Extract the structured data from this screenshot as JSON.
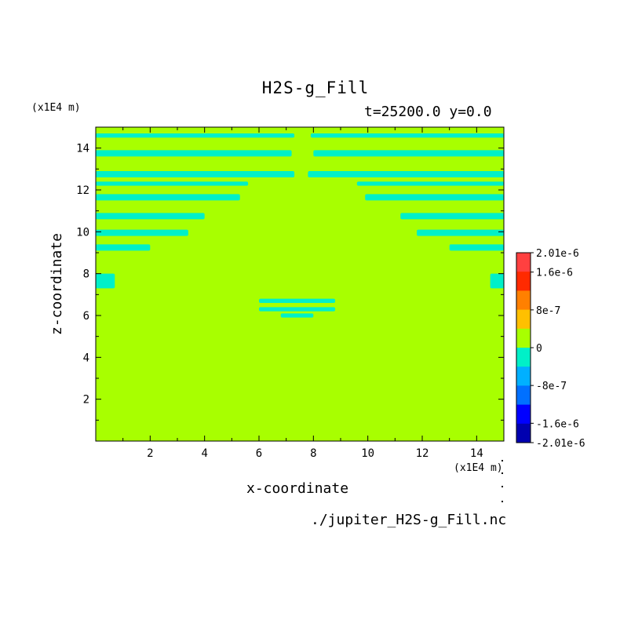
{
  "chart_data": {
    "type": "heatmap",
    "title": "H2S-g_Fill",
    "subtitle": "t=25200.0 y=0.0",
    "xlabel": "x-coordinate",
    "ylabel": "z-coordinate",
    "x_unit": "(x1E4 m)",
    "y_unit": "(x1E4 m)",
    "xlim": [
      0,
      15
    ],
    "ylim": [
      0,
      15
    ],
    "x_ticks": [
      2,
      4,
      6,
      8,
      10,
      12,
      14
    ],
    "y_ticks": [
      2,
      4,
      6,
      8,
      10,
      12,
      14
    ],
    "x_tick_labels": [
      "2",
      "4",
      "6",
      "8",
      "10",
      "12",
      "14"
    ],
    "y_tick_labels": [
      "2",
      "4",
      "6",
      "8",
      "10",
      "12",
      "14"
    ],
    "grid": false,
    "background_value": 0,
    "features": [
      {
        "kind": "cyan-band",
        "x": [
          0,
          7.3
        ],
        "z": [
          14.5,
          14.7
        ]
      },
      {
        "kind": "cyan-band",
        "x": [
          7.9,
          15
        ],
        "z": [
          14.5,
          14.7
        ]
      },
      {
        "kind": "cyan-band",
        "x": [
          0,
          7.2
        ],
        "z": [
          13.6,
          13.9
        ]
      },
      {
        "kind": "cyan-band",
        "x": [
          8,
          15
        ],
        "z": [
          13.6,
          13.9
        ]
      },
      {
        "kind": "cyan-band",
        "x": [
          0,
          7.3
        ],
        "z": [
          12.6,
          12.9
        ]
      },
      {
        "kind": "cyan-band",
        "x": [
          7.8,
          15
        ],
        "z": [
          12.6,
          12.9
        ]
      },
      {
        "kind": "cyan-band",
        "x": [
          0,
          5.6
        ],
        "z": [
          12.2,
          12.4
        ]
      },
      {
        "kind": "cyan-band",
        "x": [
          9.6,
          15
        ],
        "z": [
          12.2,
          12.4
        ]
      },
      {
        "kind": "cyan-band",
        "x": [
          0,
          5.3
        ],
        "z": [
          11.5,
          11.8
        ]
      },
      {
        "kind": "cyan-band",
        "x": [
          9.9,
          15
        ],
        "z": [
          11.5,
          11.8
        ]
      },
      {
        "kind": "cyan-band",
        "x": [
          0,
          4.0
        ],
        "z": [
          10.6,
          10.9
        ]
      },
      {
        "kind": "cyan-band",
        "x": [
          11.2,
          15
        ],
        "z": [
          10.6,
          10.9
        ]
      },
      {
        "kind": "cyan-band",
        "x": [
          0,
          3.4
        ],
        "z": [
          9.8,
          10.1
        ]
      },
      {
        "kind": "cyan-band",
        "x": [
          11.8,
          15
        ],
        "z": [
          9.8,
          10.1
        ]
      },
      {
        "kind": "cyan-band",
        "x": [
          0,
          2.0
        ],
        "z": [
          9.1,
          9.4
        ]
      },
      {
        "kind": "cyan-band",
        "x": [
          13.0,
          15
        ],
        "z": [
          9.1,
          9.4
        ]
      },
      {
        "kind": "cyan-band",
        "x": [
          0,
          0.7
        ],
        "z": [
          7.3,
          8.0
        ]
      },
      {
        "kind": "cyan-band",
        "x": [
          14.5,
          15
        ],
        "z": [
          7.3,
          8.0
        ]
      },
      {
        "kind": "cyan-band",
        "x": [
          6.0,
          8.8
        ],
        "z": [
          6.6,
          6.8
        ]
      },
      {
        "kind": "cyan-band",
        "x": [
          6.0,
          8.8
        ],
        "z": [
          6.2,
          6.4
        ]
      },
      {
        "kind": "cyan-band",
        "x": [
          6.8,
          8.0
        ],
        "z": [
          5.9,
          6.1
        ]
      }
    ],
    "colorbar": {
      "tick_labels": [
        "2.01e-6",
        "1.6e-6",
        "8e-7",
        "0",
        "-8e-7",
        "-1.6e-6",
        "-2.01e-6"
      ],
      "tick_values": [
        2.01e-06,
        1.6e-06,
        8e-07,
        0,
        -8e-07,
        -1.6e-06,
        -2.01e-06
      ],
      "levels": [
        {
          "value": 1.8e-06,
          "color": "#ff4040"
        },
        {
          "value": 1.4e-06,
          "color": "#ff2a00"
        },
        {
          "value": 1e-06,
          "color": "#ff8000"
        },
        {
          "value": 6e-07,
          "color": "#ffc000"
        },
        {
          "value": 2e-07,
          "color": "#a8ff00"
        },
        {
          "value": -2e-07,
          "color": "#00f0c8"
        },
        {
          "value": -6e-07,
          "color": "#00b0ff"
        },
        {
          "value": -1e-06,
          "color": "#0070ff"
        },
        {
          "value": -1.4e-06,
          "color": "#0000ff"
        },
        {
          "value": -1.8e-06,
          "color": "#0000b0"
        }
      ]
    }
  },
  "colors": {
    "field": "#a8ff00",
    "band": "#00f0c8",
    "band_edge": "#00c8b4"
  },
  "labels": {
    "title": "H2S-g_Fill",
    "subtitle": "t=25200.0 y=0.0",
    "y_unit": "(x1E4 m)",
    "x_unit": "(x1E4 m)",
    "xlabel": "x-coordinate",
    "ylabel": "z-coordinate",
    "filename": "./jupiter_H2S-g_Fill.nc"
  }
}
